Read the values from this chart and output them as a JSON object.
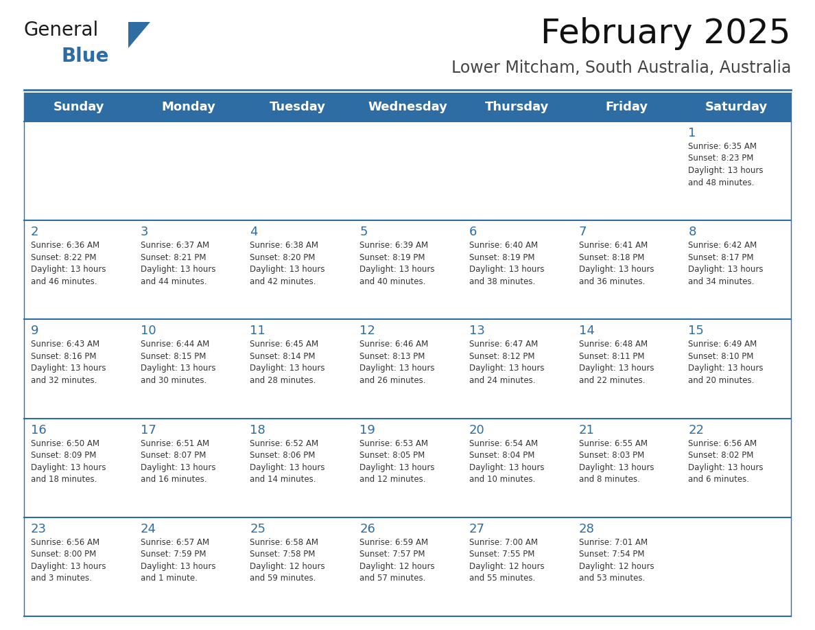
{
  "title": "February 2025",
  "subtitle": "Lower Mitcham, South Australia, Australia",
  "header_bg": "#2E6DA4",
  "header_text_color": "#FFFFFF",
  "cell_bg_light": "#F0F4F8",
  "cell_bg_white": "#FFFFFF",
  "day_number_color": "#2E6DA4",
  "info_text_color": "#333333",
  "border_color": "#2E6DA4",
  "days_of_week": [
    "Sunday",
    "Monday",
    "Tuesday",
    "Wednesday",
    "Thursday",
    "Friday",
    "Saturday"
  ],
  "weeks": [
    [
      {
        "day": 0,
        "info": ""
      },
      {
        "day": 0,
        "info": ""
      },
      {
        "day": 0,
        "info": ""
      },
      {
        "day": 0,
        "info": ""
      },
      {
        "day": 0,
        "info": ""
      },
      {
        "day": 0,
        "info": ""
      },
      {
        "day": 1,
        "info": "Sunrise: 6:35 AM\nSunset: 8:23 PM\nDaylight: 13 hours\nand 48 minutes."
      }
    ],
    [
      {
        "day": 2,
        "info": "Sunrise: 6:36 AM\nSunset: 8:22 PM\nDaylight: 13 hours\nand 46 minutes."
      },
      {
        "day": 3,
        "info": "Sunrise: 6:37 AM\nSunset: 8:21 PM\nDaylight: 13 hours\nand 44 minutes."
      },
      {
        "day": 4,
        "info": "Sunrise: 6:38 AM\nSunset: 8:20 PM\nDaylight: 13 hours\nand 42 minutes."
      },
      {
        "day": 5,
        "info": "Sunrise: 6:39 AM\nSunset: 8:19 PM\nDaylight: 13 hours\nand 40 minutes."
      },
      {
        "day": 6,
        "info": "Sunrise: 6:40 AM\nSunset: 8:19 PM\nDaylight: 13 hours\nand 38 minutes."
      },
      {
        "day": 7,
        "info": "Sunrise: 6:41 AM\nSunset: 8:18 PM\nDaylight: 13 hours\nand 36 minutes."
      },
      {
        "day": 8,
        "info": "Sunrise: 6:42 AM\nSunset: 8:17 PM\nDaylight: 13 hours\nand 34 minutes."
      }
    ],
    [
      {
        "day": 9,
        "info": "Sunrise: 6:43 AM\nSunset: 8:16 PM\nDaylight: 13 hours\nand 32 minutes."
      },
      {
        "day": 10,
        "info": "Sunrise: 6:44 AM\nSunset: 8:15 PM\nDaylight: 13 hours\nand 30 minutes."
      },
      {
        "day": 11,
        "info": "Sunrise: 6:45 AM\nSunset: 8:14 PM\nDaylight: 13 hours\nand 28 minutes."
      },
      {
        "day": 12,
        "info": "Sunrise: 6:46 AM\nSunset: 8:13 PM\nDaylight: 13 hours\nand 26 minutes."
      },
      {
        "day": 13,
        "info": "Sunrise: 6:47 AM\nSunset: 8:12 PM\nDaylight: 13 hours\nand 24 minutes."
      },
      {
        "day": 14,
        "info": "Sunrise: 6:48 AM\nSunset: 8:11 PM\nDaylight: 13 hours\nand 22 minutes."
      },
      {
        "day": 15,
        "info": "Sunrise: 6:49 AM\nSunset: 8:10 PM\nDaylight: 13 hours\nand 20 minutes."
      }
    ],
    [
      {
        "day": 16,
        "info": "Sunrise: 6:50 AM\nSunset: 8:09 PM\nDaylight: 13 hours\nand 18 minutes."
      },
      {
        "day": 17,
        "info": "Sunrise: 6:51 AM\nSunset: 8:07 PM\nDaylight: 13 hours\nand 16 minutes."
      },
      {
        "day": 18,
        "info": "Sunrise: 6:52 AM\nSunset: 8:06 PM\nDaylight: 13 hours\nand 14 minutes."
      },
      {
        "day": 19,
        "info": "Sunrise: 6:53 AM\nSunset: 8:05 PM\nDaylight: 13 hours\nand 12 minutes."
      },
      {
        "day": 20,
        "info": "Sunrise: 6:54 AM\nSunset: 8:04 PM\nDaylight: 13 hours\nand 10 minutes."
      },
      {
        "day": 21,
        "info": "Sunrise: 6:55 AM\nSunset: 8:03 PM\nDaylight: 13 hours\nand 8 minutes."
      },
      {
        "day": 22,
        "info": "Sunrise: 6:56 AM\nSunset: 8:02 PM\nDaylight: 13 hours\nand 6 minutes."
      }
    ],
    [
      {
        "day": 23,
        "info": "Sunrise: 6:56 AM\nSunset: 8:00 PM\nDaylight: 13 hours\nand 3 minutes."
      },
      {
        "day": 24,
        "info": "Sunrise: 6:57 AM\nSunset: 7:59 PM\nDaylight: 13 hours\nand 1 minute."
      },
      {
        "day": 25,
        "info": "Sunrise: 6:58 AM\nSunset: 7:58 PM\nDaylight: 12 hours\nand 59 minutes."
      },
      {
        "day": 26,
        "info": "Sunrise: 6:59 AM\nSunset: 7:57 PM\nDaylight: 12 hours\nand 57 minutes."
      },
      {
        "day": 27,
        "info": "Sunrise: 7:00 AM\nSunset: 7:55 PM\nDaylight: 12 hours\nand 55 minutes."
      },
      {
        "day": 28,
        "info": "Sunrise: 7:01 AM\nSunset: 7:54 PM\nDaylight: 12 hours\nand 53 minutes."
      },
      {
        "day": 0,
        "info": ""
      }
    ]
  ],
  "logo_color_general": "#1a1a1a",
  "logo_color_blue": "#2E6DA4",
  "logo_triangle_color": "#2E6DA4",
  "title_fontsize": 36,
  "subtitle_fontsize": 17,
  "header_fontsize": 13,
  "day_num_fontsize": 13,
  "info_fontsize": 8.5
}
